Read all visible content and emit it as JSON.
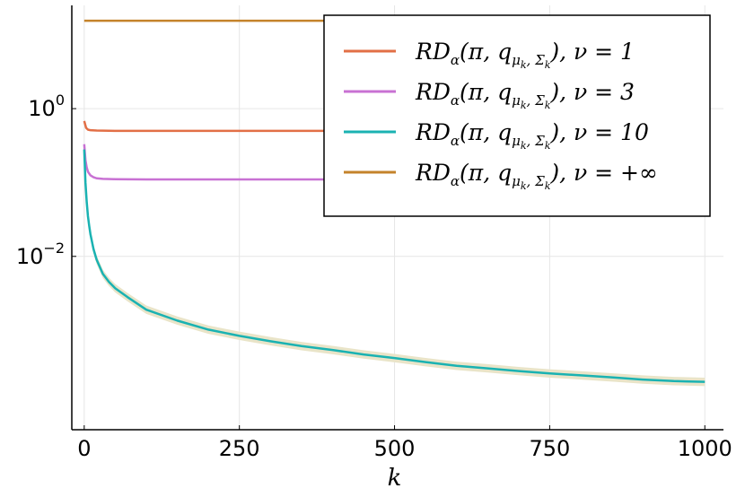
{
  "chart_data": {
    "type": "line",
    "title": "",
    "xlabel": "k",
    "ylabel": "",
    "yscale": "log",
    "xlim": [
      -20,
      1030
    ],
    "ylim": [
      4.5e-05,
      25
    ],
    "grid": true,
    "legend_position": "top-right",
    "x_ticks": [
      {
        "value": 0,
        "label": "0"
      },
      {
        "value": 250,
        "label": "250"
      },
      {
        "value": 500,
        "label": "500"
      },
      {
        "value": 750,
        "label": "750"
      },
      {
        "value": 1000,
        "label": "1000"
      }
    ],
    "y_ticks": [
      {
        "value": 1,
        "base": "10",
        "exp": "0"
      },
      {
        "value": 0.01,
        "base": "10",
        "exp": "−2"
      }
    ],
    "series": [
      {
        "name": "RDα(π, qμk, Σk), ν = 1",
        "legend": {
          "main": "RD",
          "sub": "α",
          "args": "(π, q",
          "sub2": "μ",
          "sub2sub": "k",
          "sub2comma": ", Σ",
          "sub2sub2": "k",
          "tail": "),  ν = 1"
        },
        "color": "#e26f46",
        "x": [
          0,
          3,
          6,
          10,
          20,
          50,
          100,
          200,
          300,
          400
        ],
        "y": [
          0.68,
          0.55,
          0.52,
          0.51,
          0.505,
          0.5,
          0.5,
          0.5,
          0.5,
          0.5
        ]
      },
      {
        "name": "RDα(π, qμk, Σk), ν = 3",
        "legend": {
          "main": "RD",
          "sub": "α",
          "args": "(π, q",
          "sub2": "μ",
          "sub2sub": "k",
          "sub2comma": ", Σ",
          "sub2sub2": "k",
          "tail": "),  ν = 3"
        },
        "color": "#c871d3",
        "x": [
          0,
          2,
          4,
          6,
          10,
          15,
          20,
          30,
          50,
          100,
          200,
          300,
          400
        ],
        "y": [
          0.33,
          0.2,
          0.16,
          0.14,
          0.125,
          0.118,
          0.114,
          0.112,
          0.111,
          0.11,
          0.11,
          0.11,
          0.11
        ]
      },
      {
        "name": "RDα(π, qμk, Σk), ν = 10",
        "legend": {
          "main": "RD",
          "sub": "α",
          "args": "(π, q",
          "sub2": "μ",
          "sub2sub": "k",
          "sub2comma": ", Σ",
          "sub2sub2": "k",
          "tail": "),  ν = 10"
        },
        "color": "#1ab2b2",
        "band_color": "#e9e4c8",
        "x": [
          0,
          2,
          4,
          6,
          8,
          10,
          15,
          20,
          30,
          40,
          50,
          70,
          100,
          150,
          200,
          250,
          300,
          350,
          400,
          450,
          500,
          550,
          600,
          650,
          700,
          750,
          800,
          850,
          900,
          950,
          1000
        ],
        "y": [
          0.28,
          0.1,
          0.055,
          0.035,
          0.026,
          0.02,
          0.0125,
          0.009,
          0.0058,
          0.0045,
          0.0037,
          0.0028,
          0.0019,
          0.00135,
          0.00102,
          0.00084,
          0.00071,
          0.00061,
          0.00054,
          0.00047,
          0.00042,
          0.00037,
          0.00033,
          0.000305,
          0.00028,
          0.00026,
          0.000245,
          0.00023,
          0.000215,
          0.000205,
          0.0002
        ],
        "band_factor": 1.14
      },
      {
        "name": "RDα(π, qμk, Σk), ν = +∞",
        "legend": {
          "main": "RD",
          "sub": "α",
          "args": "(π, q",
          "sub2": "μ",
          "sub2sub": "k",
          "sub2comma": ", Σ",
          "sub2sub2": "k",
          "tail": "),  ν = +∞"
        },
        "color": "#c4832b",
        "x": [
          0,
          1000
        ],
        "y": [
          15.5,
          15.5
        ]
      }
    ]
  }
}
